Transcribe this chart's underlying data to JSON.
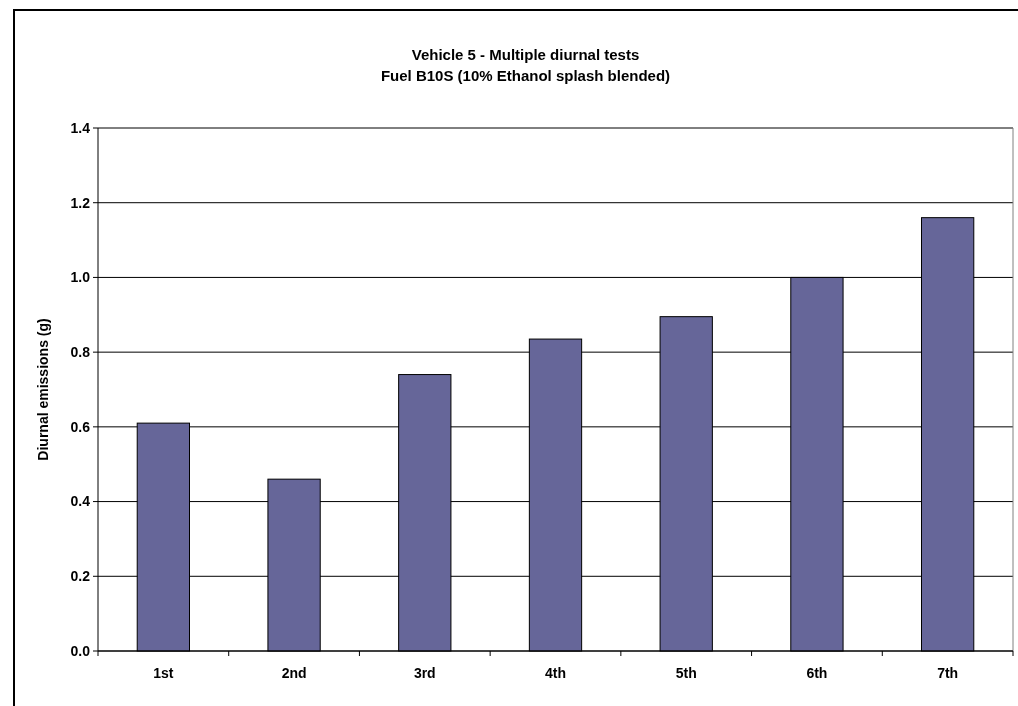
{
  "chart_data": {
    "type": "bar",
    "title": "Vehicle 5  - Multiple diurnal tests",
    "subtitle": "Fuel B10S (10% Ethanol splash blended)",
    "ylabel": "Diurnal emissions (g)",
    "categories": [
      "1st",
      "2nd",
      "3rd",
      "4th",
      "5th",
      "6th",
      "7th"
    ],
    "values": [
      0.61,
      0.46,
      0.74,
      0.835,
      0.895,
      1.0,
      1.16
    ],
    "color": "#666699",
    "ylim": [
      0,
      1.4
    ],
    "yticks": [
      {
        "value": 0,
        "label": "0.0"
      },
      {
        "value": 0.2,
        "label": "0.2"
      },
      {
        "value": 0.4,
        "label": "0.4"
      },
      {
        "value": 0.6,
        "label": "0.6"
      },
      {
        "value": 0.8,
        "label": "0.8"
      },
      {
        "value": 1.0,
        "label": "1.0"
      },
      {
        "value": 1.2,
        "label": "1.2"
      },
      {
        "value": 1.4,
        "label": "1.4"
      }
    ],
    "grid": "y"
  }
}
